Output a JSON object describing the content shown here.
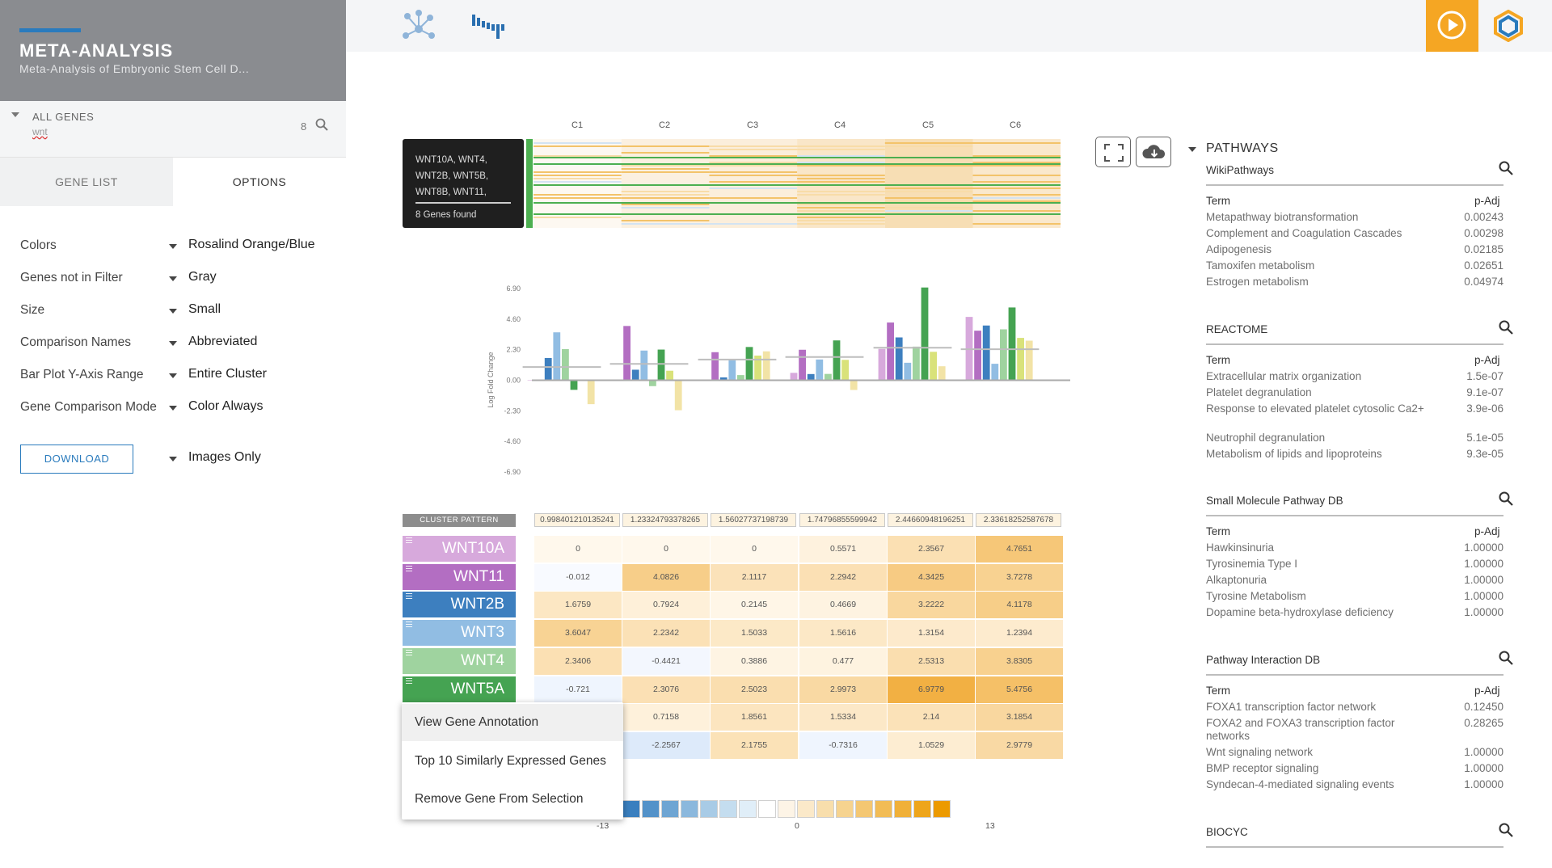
{
  "project": {
    "title": "META-ANALYSIS",
    "subtitle": "Meta-Analysis of Embryonic Stem Cell D..."
  },
  "gene_filter": {
    "label": "ALL GENES",
    "query": "wnt",
    "count": "8"
  },
  "tabs": {
    "gene_list": "GENE LIST",
    "options": "OPTIONS"
  },
  "options": [
    {
      "label": "Colors",
      "value": "Rosalind Orange/Blue"
    },
    {
      "label": "Genes not in Filter",
      "value": "Gray"
    },
    {
      "label": "Size",
      "value": "Small"
    },
    {
      "label": "Comparison Names",
      "value": "Abbreviated"
    },
    {
      "label": "Bar Plot Y-Axis Range",
      "value": "Entire Cluster"
    },
    {
      "label": "Gene Comparison Mode",
      "value": "Color Always"
    }
  ],
  "download": {
    "label": "DOWNLOAD",
    "mode": "Images Only"
  },
  "columns": [
    "C1",
    "C2",
    "C3",
    "C4",
    "C5",
    "C6"
  ],
  "tooltip": {
    "genes": "WNT10A, WNT4, WNT2B, WNT5B, WNT8B, WNT11, WNT5A, WNT3",
    "found": "8 Genes found"
  },
  "icons": [
    "network-icon",
    "histogram-icon",
    "play-icon",
    "logo-icon",
    "fullscreen-icon",
    "cloud-download-icon",
    "search-icon"
  ],
  "colors": {
    "accent": "#2a7bbd",
    "orange": "#f5a623",
    "header_gray": "#8a8c90"
  },
  "pathways": {
    "title": "PATHWAYS",
    "term_header": "Term",
    "padj_header": "p-Adj",
    "sections": [
      {
        "name": "WikiPathways",
        "rows": [
          {
            "term": "Metapathway biotransformation",
            "padj": "0.00243"
          },
          {
            "term": "Complement and Coagulation Cascades",
            "padj": "0.00298"
          },
          {
            "term": "Adipogenesis",
            "padj": "0.02185"
          },
          {
            "term": "Tamoxifen metabolism",
            "padj": "0.02651"
          },
          {
            "term": "Estrogen metabolism",
            "padj": "0.04974"
          }
        ]
      },
      {
        "name": "REACTOME",
        "rows": [
          {
            "term": "Extracellular matrix organization",
            "padj": "1.5e-07"
          },
          {
            "term": "Platelet degranulation",
            "padj": "9.1e-07"
          },
          {
            "term": "Response to elevated platelet cytosolic Ca2+",
            "padj": "3.9e-06"
          },
          {
            "term": "Neutrophil degranulation",
            "padj": "5.1e-05"
          },
          {
            "term": "Metabolism of lipids and lipoproteins",
            "padj": "9.3e-05"
          }
        ]
      },
      {
        "name": "Small Molecule Pathway DB",
        "rows": [
          {
            "term": "Hawkinsinuria",
            "padj": "1.00000"
          },
          {
            "term": "Tyrosinemia Type I",
            "padj": "1.00000"
          },
          {
            "term": "Alkaptonuria",
            "padj": "1.00000"
          },
          {
            "term": "Tyrosine Metabolism",
            "padj": "1.00000"
          },
          {
            "term": "Dopamine beta-hydroxylase deficiency",
            "padj": "1.00000"
          }
        ]
      },
      {
        "name": "Pathway Interaction DB",
        "rows": [
          {
            "term": "FOXA1 transcription factor network",
            "padj": "0.12450"
          },
          {
            "term": "FOXA2 and FOXA3 transcription factor networks",
            "padj": "0.28265"
          },
          {
            "term": "Wnt signaling network",
            "padj": "1.00000"
          },
          {
            "term": "BMP receptor signaling",
            "padj": "1.00000"
          },
          {
            "term": "Syndecan-4-mediated signaling events",
            "padj": "1.00000"
          }
        ]
      },
      {
        "name": "BIOCYC",
        "rows": []
      }
    ]
  },
  "chart_data": {
    "type": "bar",
    "ylabel": "Log Fold Change",
    "yticks": [
      "6.90",
      "4.60",
      "2.30",
      "0.00",
      "-2.30",
      "-4.60",
      "-6.90"
    ],
    "ylim": [
      -6.9,
      6.9
    ],
    "categories": [
      "C1",
      "C2",
      "C3",
      "C4",
      "C5",
      "C6"
    ],
    "series": [
      {
        "name": "WNT10A",
        "color": "#d7a9dc",
        "values": [
          0,
          0,
          0,
          0.5571,
          2.3567,
          4.7651
        ]
      },
      {
        "name": "WNT11",
        "color": "#b36ec2",
        "values": [
          -0.012,
          4.0826,
          2.1117,
          2.2942,
          4.3425,
          3.7278
        ]
      },
      {
        "name": "WNT2B",
        "color": "#3d7fbf",
        "values": [
          1.6759,
          0.7924,
          0.2145,
          0.4669,
          3.2222,
          4.1178
        ]
      },
      {
        "name": "WNT3",
        "color": "#91bde3",
        "values": [
          3.6047,
          2.2342,
          1.5033,
          1.5616,
          1.3154,
          1.2394
        ]
      },
      {
        "name": "WNT4",
        "color": "#9fd39f",
        "values": [
          2.3406,
          -0.4421,
          0.3886,
          0.477,
          2.5313,
          3.8305
        ]
      },
      {
        "name": "WNT5A",
        "color": "#45a352",
        "values": [
          -0.721,
          2.3076,
          2.5023,
          2.9973,
          6.9779,
          5.4756
        ]
      },
      {
        "name": "WNT5B",
        "color": "#d9e27a",
        "values": [
          0,
          0.7158,
          1.8561,
          1.5334,
          2.14,
          3.1854
        ]
      },
      {
        "name": "WNT8B",
        "color": "#f2e3a6",
        "values": [
          -1.8,
          -2.2567,
          2.1755,
          -0.7316,
          1.0529,
          2.9779
        ]
      }
    ],
    "cluster_pattern": [
      "0.998401210135241",
      "1.23324793378265",
      "1.56027737198739",
      "1.74796855599942",
      "2.44660948196251",
      "2.33618252587678"
    ]
  },
  "table": {
    "cluster_pattern_label": "CLUSTER PATTERN",
    "genes": [
      {
        "name": "WNT10A",
        "color": "#d7a9dc",
        "values": [
          "0",
          "0",
          "0",
          "0.5571",
          "2.3567",
          "4.7651"
        ]
      },
      {
        "name": "WNT11",
        "color": "#b36ec2",
        "values": [
          "-0.012",
          "4.0826",
          "2.1117",
          "2.2942",
          "4.3425",
          "3.7278"
        ]
      },
      {
        "name": "WNT2B",
        "color": "#3d7fbf",
        "values": [
          "1.6759",
          "0.7924",
          "0.2145",
          "0.4669",
          "3.2222",
          "4.1178"
        ]
      },
      {
        "name": "WNT3",
        "color": "#91bde3",
        "values": [
          "3.6047",
          "2.2342",
          "1.5033",
          "1.5616",
          "1.3154",
          "1.2394"
        ]
      },
      {
        "name": "WNT4",
        "color": "#9fd39f",
        "values": [
          "2.3406",
          "-0.4421",
          "0.3886",
          "0.477",
          "2.5313",
          "3.8305"
        ]
      },
      {
        "name": "WNT5A",
        "color": "#45a352",
        "values": [
          "-0.721",
          "2.3076",
          "2.5023",
          "2.9973",
          "6.9779",
          "5.4756"
        ]
      },
      {
        "name": "",
        "color": "#ffffff",
        "values": [
          "",
          "0.7158",
          "1.8561",
          "1.5334",
          "2.14",
          "3.1854"
        ]
      },
      {
        "name": "",
        "color": "#ffffff",
        "values": [
          "",
          "-2.2567",
          "2.1755",
          "-0.7316",
          "1.0529",
          "2.9779"
        ]
      }
    ]
  },
  "context_menu": {
    "items": [
      "View Gene Annotation",
      "Top 10 Similarly Expressed Genes",
      "Remove Gene From Selection"
    ]
  },
  "legend": {
    "min": "-13",
    "mid": "0",
    "max": "13"
  }
}
